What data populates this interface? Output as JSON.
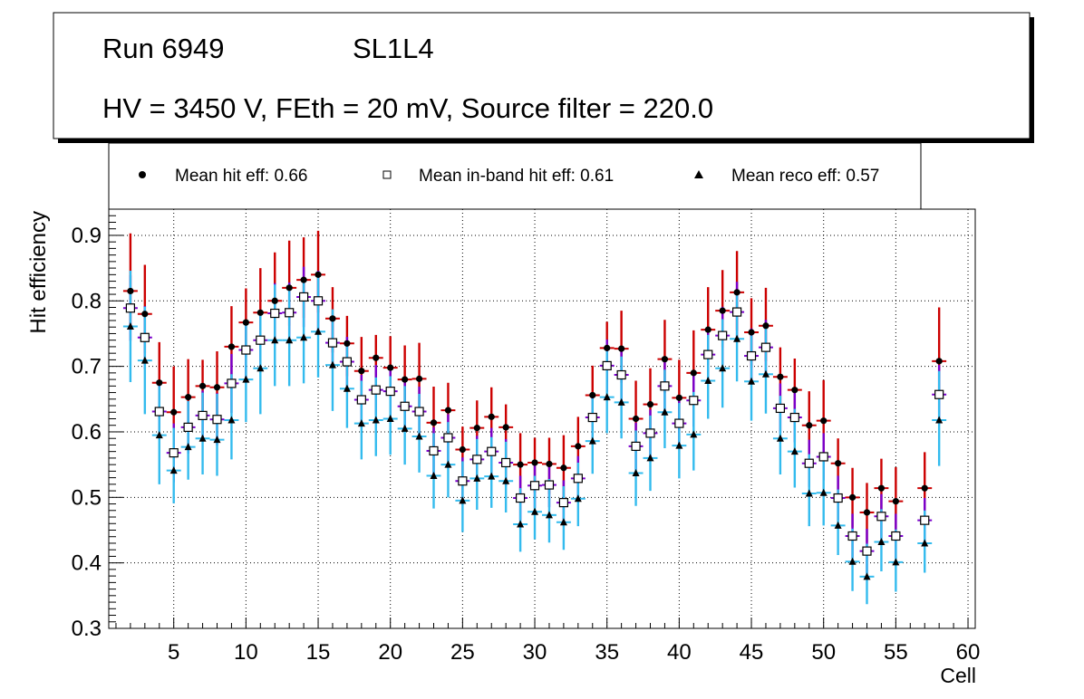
{
  "chart_data": {
    "type": "scatter",
    "header": {
      "run_label": "Run 6949",
      "layer_label": "SL1L4",
      "conditions": "HV = 3450 V, FEth = 20 mV, Source filter = 220.0"
    },
    "xlabel": "Cell",
    "ylabel": "Hit efficiency",
    "xlim": [
      0.5,
      60.5
    ],
    "ylim": [
      0.3,
      0.94
    ],
    "grid": true,
    "legend_position": "top",
    "x_ticks": [
      5,
      10,
      15,
      20,
      25,
      30,
      35,
      40,
      45,
      50,
      55,
      60
    ],
    "y_ticks": [
      0.3,
      0.4,
      0.5,
      0.6,
      0.7,
      0.8,
      0.9
    ],
    "x": [
      2,
      3,
      4,
      5,
      6,
      7,
      8,
      9,
      10,
      11,
      12,
      13,
      14,
      15,
      16,
      17,
      18,
      19,
      20,
      21,
      22,
      23,
      24,
      25,
      26,
      27,
      28,
      29,
      30,
      31,
      32,
      33,
      34,
      35,
      36,
      37,
      38,
      39,
      40,
      41,
      42,
      43,
      44,
      45,
      46,
      47,
      48,
      49,
      50,
      51,
      52,
      53,
      54,
      55,
      57,
      58
    ],
    "series": [
      {
        "name": "Mean hit  eff: 0.66",
        "legend_label": "Mean hit  eff: 0.66",
        "marker": "circle",
        "marker_color": "#000000",
        "error_color": "#cc0000",
        "values": [
          0.815,
          0.78,
          0.675,
          0.63,
          0.653,
          0.67,
          0.668,
          0.73,
          0.767,
          0.782,
          0.8,
          0.82,
          0.832,
          0.84,
          0.773,
          0.735,
          0.693,
          0.713,
          0.698,
          0.68,
          0.681,
          0.614,
          0.633,
          0.573,
          0.606,
          0.623,
          0.607,
          0.55,
          0.553,
          0.551,
          0.545,
          0.578,
          0.656,
          0.728,
          0.727,
          0.62,
          0.642,
          0.711,
          0.652,
          0.69,
          0.756,
          0.785,
          0.813,
          0.752,
          0.762,
          0.684,
          0.664,
          0.61,
          0.617,
          0.552,
          0.5,
          0.477,
          0.514,
          0.494,
          0.514,
          0.708
        ],
        "err_up": [
          0.088,
          0.075,
          0.062,
          0.07,
          0.058,
          0.04,
          0.055,
          0.062,
          0.052,
          0.068,
          0.074,
          0.072,
          0.065,
          0.067,
          0.048,
          0.042,
          0.052,
          0.035,
          0.048,
          0.052,
          0.055,
          0.055,
          0.042,
          0.035,
          0.042,
          0.045,
          0.035,
          0.048,
          0.038,
          0.04,
          0.05,
          0.045,
          0.045,
          0.04,
          0.058,
          0.058,
          0.055,
          0.06,
          0.058,
          0.065,
          0.065,
          0.062,
          0.063,
          0.052,
          0.058,
          0.045,
          0.048,
          0.052,
          0.062,
          0.038,
          0.045,
          0.045,
          0.045,
          0.052,
          0.055,
          0.082
        ],
        "err_down": [
          0.06,
          0.06,
          0.055,
          0.052,
          0.052,
          0.048,
          0.052,
          0.056,
          0.052,
          0.056,
          0.058,
          0.058,
          0.058,
          0.058,
          0.052,
          0.05,
          0.05,
          0.05,
          0.05,
          0.05,
          0.05,
          0.05,
          0.05,
          0.048,
          0.048,
          0.048,
          0.048,
          0.046,
          0.046,
          0.046,
          0.046,
          0.046,
          0.05,
          0.052,
          0.052,
          0.05,
          0.05,
          0.052,
          0.05,
          0.052,
          0.054,
          0.056,
          0.058,
          0.054,
          0.054,
          0.05,
          0.05,
          0.048,
          0.048,
          0.046,
          0.046,
          0.046,
          0.046,
          0.046,
          0.046,
          0.056
        ]
      },
      {
        "name": "Mean in-band hit eff: 0.61",
        "legend_label": "Mean in-band hit eff: 0.61",
        "marker": "open-square",
        "marker_color": "#000000",
        "error_color": "#7a00cc",
        "values": [
          0.789,
          0.744,
          0.631,
          0.568,
          0.607,
          0.625,
          0.619,
          0.674,
          0.725,
          0.74,
          0.781,
          0.782,
          0.806,
          0.8,
          0.736,
          0.707,
          0.649,
          0.664,
          0.662,
          0.639,
          0.631,
          0.571,
          0.591,
          0.525,
          0.558,
          0.57,
          0.553,
          0.499,
          0.518,
          0.519,
          0.492,
          0.529,
          0.622,
          0.701,
          0.687,
          0.578,
          0.598,
          0.67,
          0.613,
          0.648,
          0.718,
          0.747,
          0.783,
          0.716,
          0.729,
          0.636,
          0.622,
          0.552,
          0.562,
          0.499,
          0.441,
          0.418,
          0.471,
          0.441,
          0.465,
          0.657
        ],
        "err_up": [
          0.05,
          0.048,
          0.04,
          0.045,
          0.04,
          0.038,
          0.04,
          0.045,
          0.042,
          0.045,
          0.046,
          0.046,
          0.046,
          0.046,
          0.04,
          0.038,
          0.038,
          0.038,
          0.038,
          0.038,
          0.038,
          0.036,
          0.036,
          0.036,
          0.036,
          0.036,
          0.036,
          0.034,
          0.034,
          0.034,
          0.034,
          0.034,
          0.038,
          0.04,
          0.04,
          0.036,
          0.036,
          0.04,
          0.038,
          0.04,
          0.042,
          0.044,
          0.046,
          0.042,
          0.042,
          0.038,
          0.038,
          0.036,
          0.036,
          0.034,
          0.034,
          0.034,
          0.034,
          0.034,
          0.034,
          0.045
        ],
        "err_down": [
          0.05,
          0.048,
          0.04,
          0.045,
          0.04,
          0.038,
          0.04,
          0.045,
          0.042,
          0.045,
          0.046,
          0.046,
          0.046,
          0.046,
          0.04,
          0.038,
          0.038,
          0.038,
          0.038,
          0.038,
          0.038,
          0.036,
          0.036,
          0.036,
          0.036,
          0.036,
          0.036,
          0.034,
          0.034,
          0.034,
          0.034,
          0.034,
          0.038,
          0.04,
          0.04,
          0.036,
          0.036,
          0.04,
          0.038,
          0.04,
          0.042,
          0.044,
          0.046,
          0.042,
          0.042,
          0.038,
          0.038,
          0.036,
          0.036,
          0.034,
          0.034,
          0.034,
          0.034,
          0.034,
          0.034,
          0.045
        ]
      },
      {
        "name": "Mean reco eff: 0.57",
        "legend_label": "Mean reco eff: 0.57",
        "marker": "triangle",
        "marker_color": "#000000",
        "error_color": "#33bbee",
        "values": [
          0.761,
          0.709,
          0.595,
          0.541,
          0.577,
          0.59,
          0.588,
          0.618,
          0.68,
          0.697,
          0.74,
          0.74,
          0.744,
          0.753,
          0.702,
          0.666,
          0.613,
          0.618,
          0.62,
          0.605,
          0.593,
          0.533,
          0.55,
          0.495,
          0.529,
          0.532,
          0.525,
          0.459,
          0.478,
          0.473,
          0.462,
          0.498,
          0.586,
          0.653,
          0.645,
          0.537,
          0.56,
          0.63,
          0.579,
          0.596,
          0.678,
          0.697,
          0.742,
          0.677,
          0.688,
          0.59,
          0.57,
          0.506,
          0.507,
          0.457,
          0.402,
          0.379,
          0.432,
          0.401,
          0.43,
          0.618
        ],
        "err_up": [
          0.085,
          0.082,
          0.075,
          0.065,
          0.07,
          0.07,
          0.07,
          0.07,
          0.085,
          0.085,
          0.085,
          0.085,
          0.085,
          0.085,
          0.085,
          0.07,
          0.065,
          0.065,
          0.065,
          0.065,
          0.065,
          0.065,
          0.065,
          0.06,
          0.06,
          0.06,
          0.06,
          0.055,
          0.055,
          0.055,
          0.055,
          0.055,
          0.065,
          0.07,
          0.07,
          0.065,
          0.065,
          0.065,
          0.065,
          0.065,
          0.07,
          0.075,
          0.075,
          0.07,
          0.07,
          0.065,
          0.065,
          0.06,
          0.06,
          0.055,
          0.05,
          0.05,
          0.05,
          0.05,
          0.05,
          0.075
        ],
        "err_down": [
          0.085,
          0.082,
          0.075,
          0.05,
          0.05,
          0.055,
          0.055,
          0.06,
          0.065,
          0.07,
          0.07,
          0.07,
          0.07,
          0.07,
          0.07,
          0.06,
          0.055,
          0.055,
          0.055,
          0.055,
          0.055,
          0.05,
          0.05,
          0.048,
          0.048,
          0.048,
          0.048,
          0.042,
          0.042,
          0.042,
          0.042,
          0.042,
          0.05,
          0.055,
          0.055,
          0.05,
          0.05,
          0.055,
          0.05,
          0.055,
          0.058,
          0.06,
          0.065,
          0.06,
          0.06,
          0.055,
          0.055,
          0.05,
          0.05,
          0.045,
          0.045,
          0.042,
          0.045,
          0.045,
          0.045,
          0.07
        ]
      }
    ]
  }
}
